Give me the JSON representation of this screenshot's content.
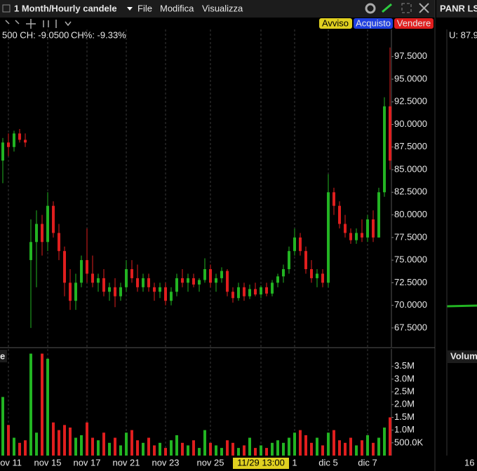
{
  "toolbar": {
    "title": "1 Month/Hourly candele",
    "menu": [
      "File",
      "Modifica",
      "Visualizza"
    ],
    "buttons": [
      "Avviso",
      "Acquisto",
      "Vendere"
    ]
  },
  "info": [
    "500 CH: -9.0500",
    "CH%: -9.33%"
  ],
  "volume_pane_label": "e",
  "side_panel": {
    "title": "PANR LS",
    "info": "U: 87.9",
    "volume_label": "Volum",
    "x_label": "16"
  },
  "chart_data": [
    {
      "type": "candlestick",
      "up_color": "#22b422",
      "down_color": "#e01e1e",
      "grid": true,
      "categories": [
        null,
        "nov 11",
        null,
        null,
        null,
        null,
        null,
        null,
        "nov 15",
        null,
        null,
        null,
        null,
        null,
        null,
        "nov 17",
        null,
        null,
        null,
        null,
        null,
        null,
        "nov 21",
        null,
        null,
        null,
        null,
        null,
        null,
        "nov 23",
        null,
        null,
        null,
        null,
        null,
        null,
        null,
        "nov 25",
        null,
        null,
        null,
        null,
        null,
        null,
        null,
        null,
        "11/29 13:00",
        null,
        null,
        null,
        null,
        null,
        "1",
        null,
        null,
        null,
        null,
        null,
        "dic 5",
        null,
        null,
        null,
        null,
        null,
        null,
        "dic 7",
        null,
        null,
        null,
        null
      ],
      "open": [
        86,
        88,
        87.5,
        89,
        88.3,
        75,
        77,
        79,
        77,
        81,
        78,
        76,
        72.5,
        70.5,
        72.5,
        75,
        73.5,
        72.5,
        73,
        71.5,
        72,
        71,
        72,
        74,
        73,
        72,
        73,
        72,
        71.5,
        72,
        70.5,
        71.5,
        73,
        72.5,
        73,
        72.3,
        72.8,
        74,
        72.5,
        73,
        73.8,
        71.5,
        70.8,
        72,
        71,
        71.8,
        71.2,
        72,
        71.3,
        72.5,
        73.2,
        74,
        76,
        77.5,
        76,
        74,
        73,
        73.5,
        72.5,
        82.5,
        81,
        79,
        78,
        77.2,
        78,
        77.5,
        79.5,
        77.5,
        82.5,
        92
      ],
      "high": [
        88.5,
        89,
        89.3,
        89.5,
        89,
        79.5,
        80.5,
        80,
        82.5,
        81.5,
        79,
        76.5,
        74,
        73.5,
        75.5,
        78.5,
        75.5,
        73.5,
        74,
        72.5,
        73,
        72.5,
        75,
        75,
        74.5,
        73.5,
        73.5,
        72.5,
        72.5,
        72.5,
        72,
        73.5,
        74,
        73.5,
        73.5,
        73,
        75.2,
        74.5,
        73.5,
        74.2,
        74,
        72,
        72.5,
        72.5,
        72.3,
        72.5,
        72.2,
        72.5,
        72.8,
        73.5,
        74.5,
        76.5,
        78.5,
        78,
        76.5,
        75,
        74,
        74,
        84.5,
        83,
        81.5,
        80,
        78.5,
        78.5,
        79.5,
        80,
        80.5,
        83,
        93,
        98.5
      ],
      "low": [
        83.5,
        86.5,
        87,
        88,
        87.5,
        67.5,
        72,
        75.5,
        76,
        77.5,
        75,
        71,
        69.5,
        69.5,
        72,
        72.5,
        72,
        71.5,
        71,
        70.5,
        69.8,
        70.5,
        71.5,
        72.5,
        71.5,
        71.5,
        71.5,
        70.5,
        70.8,
        70,
        70,
        71,
        72,
        71.5,
        72,
        71.5,
        72.5,
        72,
        71.5,
        72.5,
        71,
        70.3,
        70.5,
        70.5,
        70.7,
        71,
        70.8,
        71,
        71,
        72,
        72.5,
        73.5,
        75.5,
        75.5,
        73.5,
        72.5,
        72,
        72,
        72,
        80,
        78.5,
        77.5,
        76.8,
        76.8,
        77,
        77,
        77,
        77.5,
        82,
        85
      ],
      "close": [
        88,
        87.5,
        89,
        88.3,
        88,
        77,
        79,
        77,
        81,
        78,
        76,
        72.5,
        70.5,
        72.5,
        75,
        73.5,
        72.5,
        73,
        71.5,
        72,
        71,
        72,
        74,
        73,
        72,
        73,
        72,
        71.5,
        72,
        70.5,
        71.5,
        73,
        72.5,
        73,
        72.3,
        72.8,
        74,
        72.5,
        73,
        73.8,
        71.5,
        70.8,
        72,
        71,
        71.8,
        71.2,
        72,
        71.3,
        72.5,
        73.2,
        74,
        76,
        77.5,
        76,
        74,
        73,
        73.5,
        72.5,
        82.5,
        81,
        79,
        78,
        77.2,
        78,
        77.5,
        79.5,
        77.5,
        82.5,
        92,
        86
      ],
      "ylim": [
        65.4,
        100.5
      ],
      "yticks": [
        {
          "value": 67.5,
          "label": "67.5000"
        },
        {
          "value": 70,
          "label": "70.0000"
        },
        {
          "value": 72.5,
          "label": "72.5000"
        },
        {
          "value": 75,
          "label": "75.0000"
        },
        {
          "value": 77.5,
          "label": "77.5000"
        },
        {
          "value": 80,
          "label": "80.0000"
        },
        {
          "value": 82.5,
          "label": "82.5000"
        },
        {
          "value": 85,
          "label": "85.0000"
        },
        {
          "value": 87.5,
          "label": "87.5000"
        },
        {
          "value": 90,
          "label": "90.0000"
        },
        {
          "value": 92.5,
          "label": "92.5000"
        },
        {
          "value": 95,
          "label": "95.0000"
        },
        {
          "value": 97.5,
          "label": "97.5000"
        }
      ]
    },
    {
      "type": "bar",
      "values": [
        2300000,
        1200000,
        700000,
        500000,
        600000,
        4000000,
        900000,
        4000000,
        3800000,
        1300000,
        1000000,
        1200000,
        1100000,
        700000,
        800000,
        1300000,
        700000,
        600000,
        900000,
        500000,
        700000,
        400000,
        900000,
        1000000,
        600000,
        500000,
        700000,
        400000,
        500000,
        300000,
        600000,
        800000,
        500000,
        400000,
        600000,
        300000,
        1000000,
        500000,
        400000,
        300000,
        600000,
        500000,
        300000,
        400000,
        700000,
        300000,
        400000,
        300000,
        500000,
        600000,
        500000,
        700000,
        900000,
        1000000,
        800000,
        500000,
        700000,
        400000,
        900000,
        1000000,
        600000,
        500000,
        700000,
        400000,
        600000,
        800000,
        500000,
        700000,
        1100000,
        1500000
      ],
      "ylim": [
        0,
        4180000
      ],
      "yticks": [
        {
          "value": 500000,
          "label": "500.0K"
        },
        {
          "value": 1000000,
          "label": "1.0M"
        },
        {
          "value": 1500000,
          "label": "1.5M"
        },
        {
          "value": 2000000,
          "label": "2.0M"
        },
        {
          "value": 2500000,
          "label": "2.5M"
        },
        {
          "value": 3000000,
          "label": "3.0M"
        },
        {
          "value": 3500000,
          "label": "3.5M"
        }
      ]
    }
  ]
}
